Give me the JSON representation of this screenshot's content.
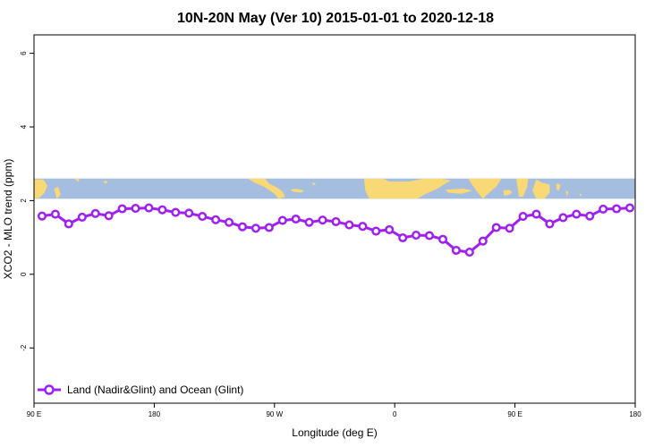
{
  "colors": {
    "series": "#a020f0",
    "ocean": "#a5bddf",
    "land": "#f9d976",
    "axis": "#000000",
    "background": "#ffffff"
  },
  "chart_data": {
    "type": "line",
    "title": "10N-20N May (Ver 10)   2015-01-01 to 2020-12-18",
    "xlabel": "Longitude (deg E)",
    "ylabel": "XCO2 - MLO trend (ppm)",
    "x_ticks": [
      {
        "value": 90,
        "label": "90 E"
      },
      {
        "value": 180,
        "label": "180"
      },
      {
        "value": 270,
        "label": "90 W"
      },
      {
        "value": 360,
        "label": "0"
      },
      {
        "value": 450,
        "label": "90 E"
      },
      {
        "value": 540,
        "label": "180"
      }
    ],
    "y_ticks": [
      {
        "value": -2,
        "label": "-2"
      },
      {
        "value": 0,
        "label": "0"
      },
      {
        "value": 2,
        "label": "2"
      },
      {
        "value": 4,
        "label": "4"
      },
      {
        "value": 6,
        "label": "6"
      }
    ],
    "xlim": [
      90,
      540
    ],
    "ylim": [
      -3.5,
      6.5
    ],
    "grid": false,
    "legend_position": "bottom-left",
    "map_band": {
      "ymin": 2.05,
      "ymax": 2.6,
      "description": "world map strip (land/ocean)"
    },
    "series": [
      {
        "name": "Land (Nadir&Glint) and Ocean (Glint)",
        "x": [
          96,
          106,
          116,
          126,
          136,
          146,
          156,
          166,
          176,
          186,
          196,
          206,
          216,
          226,
          236,
          246,
          256,
          266,
          276,
          286,
          296,
          306,
          316,
          326,
          336,
          346,
          356,
          366,
          376,
          386,
          396,
          406,
          416,
          426,
          436,
          446,
          456,
          466,
          476,
          486,
          496,
          506,
          516,
          526,
          536
        ],
        "values": [
          1.58,
          1.63,
          1.37,
          1.55,
          1.65,
          1.59,
          1.78,
          1.79,
          1.8,
          1.75,
          1.68,
          1.66,
          1.57,
          1.48,
          1.41,
          1.29,
          1.25,
          1.27,
          1.46,
          1.5,
          1.41,
          1.47,
          1.43,
          1.34,
          1.3,
          1.17,
          1.21,
          0.99,
          1.06,
          1.05,
          0.95,
          0.65,
          0.6,
          0.9,
          1.27,
          1.25,
          1.57,
          1.63,
          1.37,
          1.54,
          1.63,
          1.58,
          1.77,
          1.78,
          1.8
        ]
      }
    ]
  }
}
